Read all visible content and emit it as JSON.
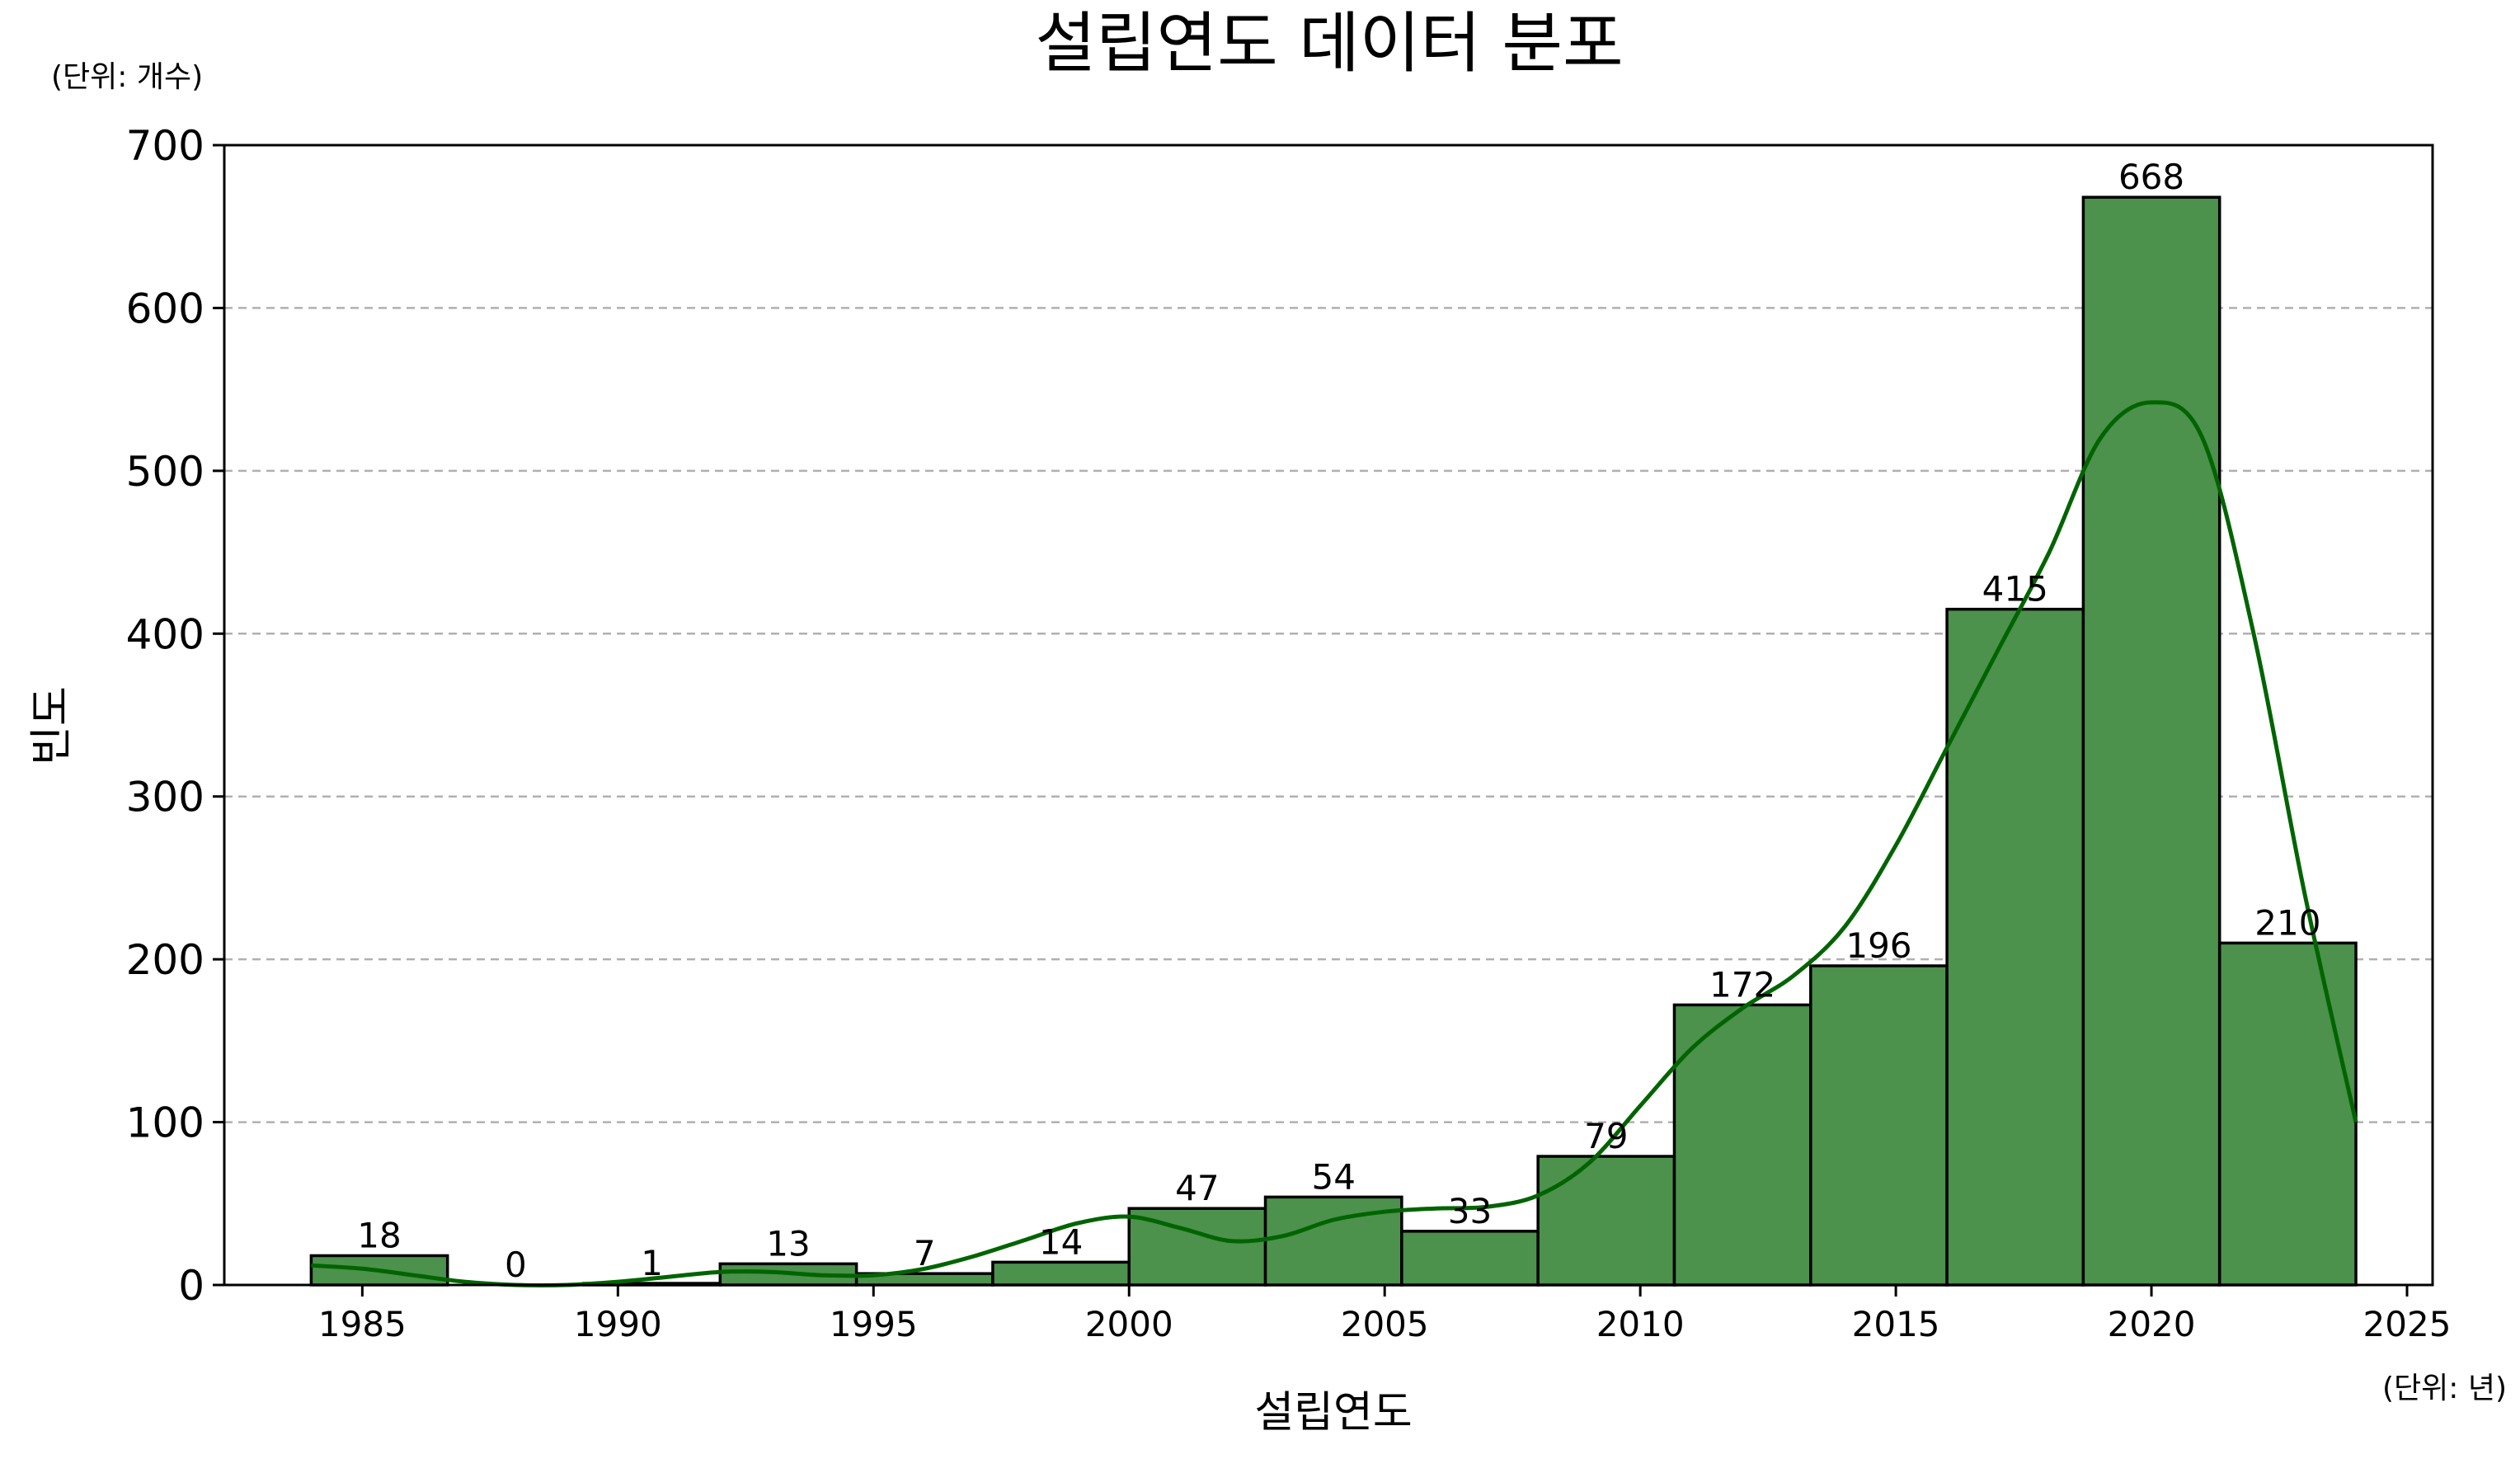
{
  "chart_data": {
    "type": "bar",
    "title": "설립연도 데이터 분포",
    "y_unit_note": "(단위: 개수)",
    "x_unit_note": "(단위: 년)",
    "xlabel": "설립연도",
    "ylabel": "빈도",
    "xlim": [
      1982.3,
      2025.5
    ],
    "ylim": [
      0,
      700
    ],
    "x_ticks": [
      "1985",
      "1990",
      "1995",
      "2000",
      "2005",
      "2010",
      "2015",
      "2020",
      "2025"
    ],
    "y_ticks": [
      "0",
      "100",
      "200",
      "300",
      "400",
      "500",
      "600",
      "700"
    ],
    "grid": "y-dashed",
    "bin_start": 1984,
    "bin_end": 2024,
    "bars": [
      {
        "value": 18,
        "label": "18"
      },
      {
        "value": 0,
        "label": "0"
      },
      {
        "value": 1,
        "label": "1"
      },
      {
        "value": 13,
        "label": "13"
      },
      {
        "value": 7,
        "label": "7"
      },
      {
        "value": 14,
        "label": "14"
      },
      {
        "value": 47,
        "label": "47"
      },
      {
        "value": 54,
        "label": "54"
      },
      {
        "value": 33,
        "label": "33"
      },
      {
        "value": 79,
        "label": "79"
      },
      {
        "value": 172,
        "label": "172"
      },
      {
        "value": 196,
        "label": "196"
      },
      {
        "value": 415,
        "label": "415"
      },
      {
        "value": 668,
        "label": "668"
      },
      {
        "value": 210,
        "label": "210"
      }
    ],
    "kde_curve": {
      "x": [
        1984,
        1985,
        1986,
        1987,
        1988,
        1989,
        1990,
        1991,
        1992,
        1993,
        1994,
        1995,
        1996,
        1997,
        1998,
        1999,
        2000,
        2001,
        2002,
        2003,
        2004,
        2005,
        2006,
        2007,
        2008,
        2009,
        2010,
        2011,
        2012,
        2013,
        2014,
        2015,
        2016,
        2017,
        2018,
        2019,
        2020,
        2021,
        2022,
        2023,
        2024
      ],
      "y": [
        12,
        10,
        6,
        2,
        0,
        0,
        2,
        5,
        8,
        8,
        6,
        6,
        10,
        18,
        28,
        38,
        42,
        35,
        27,
        30,
        40,
        45,
        47,
        48,
        55,
        75,
        110,
        145,
        170,
        190,
        220,
        270,
        330,
        390,
        450,
        520,
        542,
        520,
        400,
        240,
        100
      ]
    },
    "colors": {
      "bar_fill": "#4c914c",
      "bar_edge": "#000000",
      "kde_line": "#006400",
      "grid": "#b0b0b0"
    }
  }
}
